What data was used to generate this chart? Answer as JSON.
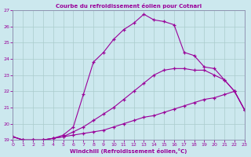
{
  "title": "Courbe du refroidissement éolien pour Cotnari",
  "xlabel": "Windchill (Refroidissement éolien,°C)",
  "xlim": [
    0,
    23
  ],
  "ylim": [
    19,
    27
  ],
  "yticks": [
    19,
    20,
    21,
    22,
    23,
    24,
    25,
    26,
    27
  ],
  "xticks": [
    0,
    1,
    2,
    3,
    4,
    5,
    6,
    7,
    8,
    9,
    10,
    11,
    12,
    13,
    14,
    15,
    16,
    17,
    18,
    19,
    20,
    21,
    22,
    23
  ],
  "bg_color": "#cce8ee",
  "line_color": "#990099",
  "grid_color": "#aacccc",
  "line1_x": [
    0,
    1,
    2,
    3,
    4,
    5,
    6,
    7,
    8,
    9,
    10,
    11,
    12,
    13,
    14,
    15,
    16,
    17,
    18,
    19,
    20,
    21,
    22,
    23
  ],
  "line1_y": [
    19.2,
    19.0,
    19.0,
    19.0,
    19.1,
    19.2,
    19.3,
    19.4,
    19.5,
    19.6,
    19.8,
    20.0,
    20.2,
    20.4,
    20.5,
    20.7,
    20.9,
    21.1,
    21.3,
    21.5,
    21.6,
    21.8,
    22.0,
    20.85
  ],
  "line2_x": [
    0,
    1,
    2,
    3,
    4,
    5,
    6,
    7,
    8,
    9,
    10,
    11,
    12,
    13,
    14,
    15,
    16,
    17,
    18,
    19,
    20,
    21,
    22,
    23
  ],
  "line2_y": [
    19.2,
    19.0,
    19.0,
    19.0,
    19.1,
    19.2,
    19.5,
    19.8,
    20.2,
    20.6,
    21.0,
    21.5,
    22.0,
    22.5,
    23.0,
    23.3,
    23.4,
    23.4,
    23.3,
    23.3,
    23.0,
    22.7,
    22.0,
    20.85
  ],
  "line3_x": [
    0,
    1,
    2,
    3,
    4,
    5,
    6,
    7,
    8,
    9,
    10,
    11,
    12,
    13,
    14,
    15,
    16,
    17,
    18,
    19,
    20,
    21,
    22,
    23
  ],
  "line3_y": [
    19.2,
    19.0,
    19.0,
    19.0,
    19.1,
    19.3,
    19.8,
    21.8,
    23.8,
    24.4,
    25.2,
    25.8,
    26.2,
    26.75,
    26.4,
    26.3,
    26.1,
    24.4,
    24.2,
    23.5,
    23.4,
    22.7,
    22.0,
    20.85
  ]
}
